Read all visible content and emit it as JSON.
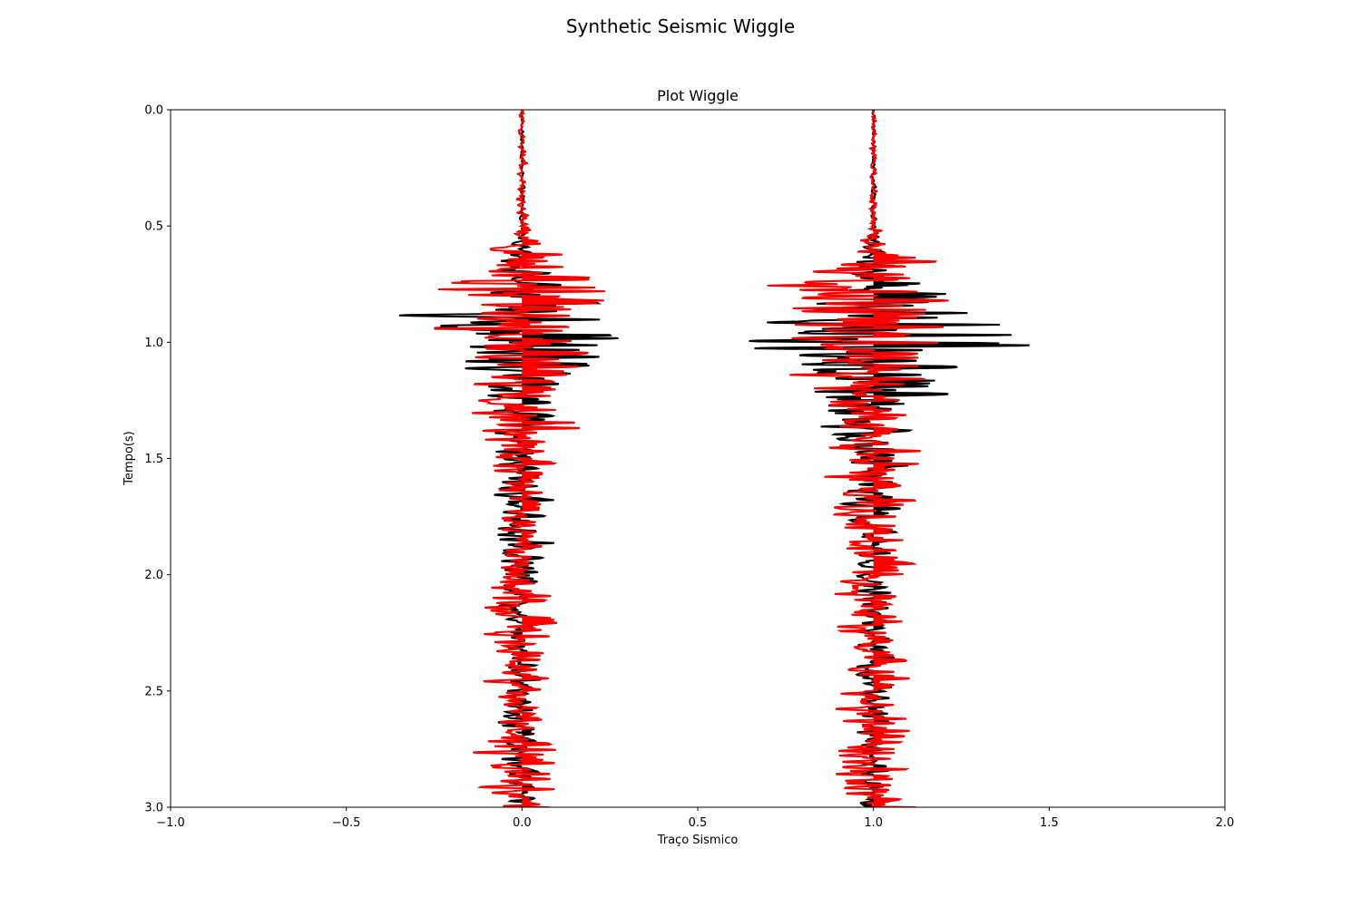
{
  "chart_data": {
    "type": "line",
    "suptitle": "Synthetic Seismic Wiggle",
    "title": "Plot Wiggle",
    "xlabel": "Traço Sismico",
    "ylabel": "Tempo(s)",
    "xlim": [
      -1.0,
      2.0
    ],
    "ylim": [
      3.0,
      0.0
    ],
    "y_inverted": true,
    "grid": false,
    "xticks": [
      -1.0,
      -0.5,
      0.0,
      0.5,
      1.0,
      1.5,
      2.0
    ],
    "xtick_labels": [
      "−1.0",
      "−0.5",
      "0.0",
      "0.5",
      "1.0",
      "1.5",
      "2.0"
    ],
    "yticks": [
      0.0,
      0.5,
      1.0,
      1.5,
      2.0,
      2.5,
      3.0
    ],
    "ytick_labels": [
      "0.0",
      "0.5",
      "1.0",
      "1.5",
      "2.0",
      "2.5",
      "3.0"
    ],
    "traces": [
      {
        "offset": 0.0,
        "colors": {
          "original": "#000000",
          "noisy": "#ff0000"
        },
        "original_envelope": [
          [
            0.0,
            0.004
          ],
          [
            0.5,
            0.01
          ],
          [
            0.6,
            0.04
          ],
          [
            0.8,
            0.15
          ],
          [
            0.88,
            0.42
          ],
          [
            0.97,
            0.46
          ],
          [
            1.05,
            0.38
          ],
          [
            1.15,
            0.22
          ],
          [
            1.3,
            0.12
          ],
          [
            1.5,
            0.1
          ],
          [
            1.8,
            0.12
          ],
          [
            2.0,
            0.08
          ],
          [
            2.3,
            0.06
          ],
          [
            2.6,
            0.08
          ],
          [
            2.8,
            0.08
          ],
          [
            3.0,
            0.05
          ]
        ],
        "noisy_envelope": [
          [
            0.0,
            0.01
          ],
          [
            0.5,
            0.02
          ],
          [
            0.6,
            0.12
          ],
          [
            0.73,
            0.32
          ],
          [
            0.81,
            0.4
          ],
          [
            0.86,
            0.42
          ],
          [
            1.0,
            0.3
          ],
          [
            1.2,
            0.2
          ],
          [
            1.3,
            0.22
          ],
          [
            1.5,
            0.12
          ],
          [
            1.8,
            0.1
          ],
          [
            2.0,
            0.1
          ],
          [
            2.12,
            0.22
          ],
          [
            2.2,
            0.15
          ],
          [
            2.4,
            0.12
          ],
          [
            2.6,
            0.1
          ],
          [
            2.8,
            0.17
          ],
          [
            3.0,
            0.1
          ]
        ]
      },
      {
        "offset": 1.0,
        "colors": {
          "original": "#000000",
          "noisy": "#ff0000"
        },
        "original_envelope": [
          [
            0.0,
            0.005
          ],
          [
            0.5,
            0.01
          ],
          [
            0.6,
            0.04
          ],
          [
            0.8,
            0.3
          ],
          [
            0.9,
            0.45
          ],
          [
            0.97,
            0.5
          ],
          [
            1.03,
            0.52
          ],
          [
            1.1,
            0.35
          ],
          [
            1.3,
            0.2
          ],
          [
            1.5,
            0.12
          ],
          [
            1.8,
            0.08
          ],
          [
            2.0,
            0.06
          ],
          [
            2.3,
            0.06
          ],
          [
            2.6,
            0.06
          ],
          [
            3.0,
            0.06
          ]
        ],
        "noisy_envelope": [
          [
            0.0,
            0.01
          ],
          [
            0.5,
            0.02
          ],
          [
            0.6,
            0.12
          ],
          [
            0.7,
            0.35
          ],
          [
            0.8,
            0.4
          ],
          [
            0.9,
            0.36
          ],
          [
            1.0,
            0.33
          ],
          [
            1.2,
            0.25
          ],
          [
            1.4,
            0.15
          ],
          [
            1.5,
            0.25
          ],
          [
            1.6,
            0.2
          ],
          [
            1.8,
            0.15
          ],
          [
            2.0,
            0.15
          ],
          [
            2.2,
            0.15
          ],
          [
            2.4,
            0.12
          ],
          [
            2.6,
            0.18
          ],
          [
            2.75,
            0.2
          ],
          [
            2.9,
            0.15
          ],
          [
            3.0,
            0.12
          ]
        ]
      }
    ]
  }
}
